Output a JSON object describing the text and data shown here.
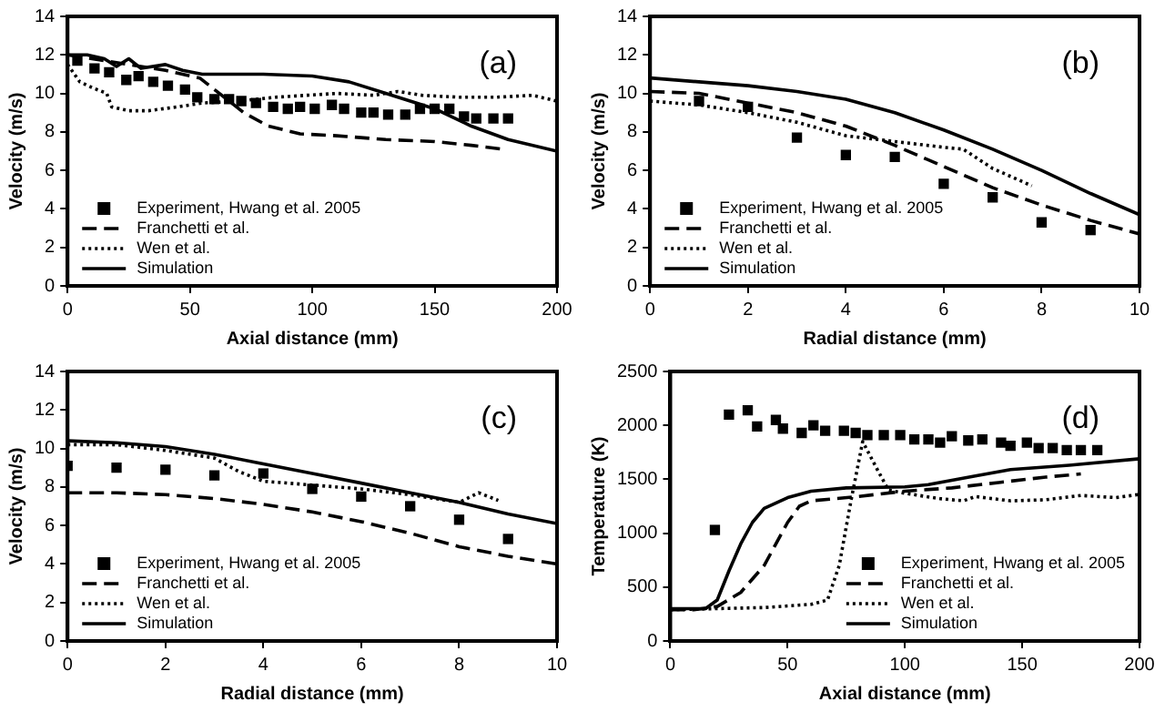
{
  "chart_data": [
    {
      "type": "line",
      "annotations": [
        "(a)"
      ],
      "xlabel": "Axial distance (mm)",
      "ylabel": "Velocity (m/s)",
      "xlim": [
        0,
        200
      ],
      "xticks": [
        0,
        50,
        100,
        150,
        200
      ],
      "ylim": [
        0,
        14
      ],
      "yticks": [
        0,
        2,
        4,
        6,
        8,
        10,
        12,
        14
      ],
      "legend": "bottom left",
      "series": [
        {
          "name": "Experiment, Hwang et al. 2005",
          "type": "scatter",
          "marker": "square",
          "color": "#000000",
          "x": [
            4,
            11,
            17,
            24,
            29,
            35,
            41,
            48,
            53,
            60,
            66,
            71,
            77,
            84,
            90,
            95,
            101,
            108,
            113,
            120,
            125,
            131,
            138,
            144,
            150,
            156,
            162,
            167,
            174,
            180
          ],
          "values": [
            11.7,
            11.3,
            11.1,
            10.7,
            10.9,
            10.6,
            10.4,
            10.2,
            9.8,
            9.7,
            9.7,
            9.6,
            9.5,
            9.3,
            9.2,
            9.3,
            9.2,
            9.4,
            9.2,
            9.0,
            9.0,
            8.9,
            8.9,
            9.2,
            9.2,
            9.2,
            8.8,
            8.7,
            8.7,
            8.7
          ]
        },
        {
          "name": "Franchetti et al.",
          "type": "line",
          "line_style": "dashed",
          "color": "#000000",
          "x": [
            0,
            10,
            25,
            40,
            54,
            63,
            72,
            82,
            95,
            110,
            130,
            150,
            165,
            178
          ],
          "values": [
            12.0,
            11.8,
            11.5,
            11.2,
            10.8,
            9.9,
            9.0,
            8.3,
            7.9,
            7.8,
            7.6,
            7.5,
            7.3,
            7.1
          ]
        },
        {
          "name": "Wen et al.",
          "type": "line",
          "line_style": "dotted",
          "color": "#000000",
          "x": [
            0,
            5,
            10,
            16,
            18,
            25,
            33,
            45,
            55,
            70,
            85,
            110,
            125,
            135,
            145,
            160,
            175,
            190,
            200
          ],
          "values": [
            11.5,
            10.6,
            10.3,
            10.0,
            9.3,
            9.1,
            9.1,
            9.3,
            9.5,
            9.6,
            9.8,
            10.0,
            9.9,
            10.1,
            9.9,
            9.8,
            9.8,
            9.9,
            9.6
          ]
        },
        {
          "name": "Simulation",
          "type": "line",
          "line_style": "solid",
          "color": "#000000",
          "x": [
            0,
            8,
            15,
            20,
            25,
            30,
            40,
            47,
            55,
            80,
            100,
            115,
            130,
            150,
            165,
            180,
            200
          ],
          "values": [
            12.0,
            12.0,
            11.8,
            11.4,
            11.8,
            11.3,
            11.5,
            11.2,
            11.0,
            11.0,
            10.9,
            10.6,
            10.0,
            9.2,
            8.3,
            7.6,
            7.0
          ]
        }
      ]
    },
    {
      "type": "line",
      "annotations": [
        "(b)"
      ],
      "xlabel": "Radial distance (mm)",
      "ylabel": "Velocity (m/s)",
      "xlim": [
        0,
        10
      ],
      "xticks": [
        0,
        2,
        4,
        6,
        8,
        10
      ],
      "ylim": [
        0,
        14
      ],
      "yticks": [
        0,
        2,
        4,
        6,
        8,
        10,
        12,
        14
      ],
      "legend": "bottom left",
      "series": [
        {
          "name": "Experiment, Hwang et al. 2005",
          "type": "scatter",
          "marker": "square",
          "color": "#000000",
          "x": [
            1,
            2,
            3,
            4,
            5,
            6,
            7,
            8,
            9
          ],
          "values": [
            9.6,
            9.3,
            7.7,
            6.8,
            6.7,
            5.3,
            4.6,
            3.3,
            2.9
          ]
        },
        {
          "name": "Franchetti et al.",
          "type": "line",
          "line_style": "dashed",
          "color": "#000000",
          "x": [
            0,
            1,
            2,
            3,
            4,
            5,
            6,
            7,
            8,
            9,
            10
          ],
          "values": [
            10.1,
            10.0,
            9.5,
            9.0,
            8.3,
            7.3,
            6.2,
            5.1,
            4.2,
            3.4,
            2.7
          ]
        },
        {
          "name": "Wen et al.",
          "type": "line",
          "line_style": "dotted",
          "color": "#000000",
          "x": [
            0,
            1,
            2,
            3,
            4,
            5,
            6,
            6.4,
            7,
            7.8
          ],
          "values": [
            9.6,
            9.4,
            9.0,
            8.5,
            7.8,
            7.5,
            7.2,
            7.1,
            6.1,
            5.2
          ]
        },
        {
          "name": "Simulation",
          "type": "line",
          "line_style": "solid",
          "color": "#000000",
          "x": [
            0,
            1,
            2,
            3,
            4,
            5,
            6,
            7,
            8,
            9,
            10
          ],
          "values": [
            10.8,
            10.6,
            10.4,
            10.1,
            9.7,
            9.0,
            8.1,
            7.1,
            6.0,
            4.8,
            3.7
          ]
        }
      ]
    },
    {
      "type": "line",
      "annotations": [
        "(c)"
      ],
      "xlabel": "Radial distance (mm)",
      "ylabel": "Velocity (m/s)",
      "xlim": [
        0,
        10
      ],
      "xticks": [
        0,
        2,
        4,
        6,
        8,
        10
      ],
      "ylim": [
        0,
        14
      ],
      "yticks": [
        0,
        2,
        4,
        6,
        8,
        10,
        12,
        14
      ],
      "legend": "bottom left",
      "series": [
        {
          "name": "Experiment, Hwang et al. 2005",
          "type": "scatter",
          "marker": "square",
          "color": "#000000",
          "x": [
            0,
            1,
            2,
            3,
            4,
            5,
            6,
            7,
            8,
            9
          ],
          "values": [
            9.1,
            9.0,
            8.9,
            8.6,
            8.7,
            7.9,
            7.5,
            7.0,
            6.3,
            5.3
          ]
        },
        {
          "name": "Franchetti et al.",
          "type": "line",
          "line_style": "dashed",
          "color": "#000000",
          "x": [
            0,
            1,
            2,
            3,
            4,
            5,
            6,
            7,
            8,
            9,
            10
          ],
          "values": [
            7.7,
            7.7,
            7.6,
            7.4,
            7.1,
            6.7,
            6.2,
            5.6,
            4.9,
            4.4,
            4.0
          ]
        },
        {
          "name": "Wen et al.",
          "type": "line",
          "line_style": "dotted",
          "color": "#000000",
          "x": [
            0,
            1,
            2,
            3,
            3.5,
            4,
            5,
            6,
            7,
            8,
            8.4,
            8.8
          ],
          "values": [
            10.2,
            10.2,
            9.9,
            9.5,
            8.8,
            8.3,
            8.1,
            7.9,
            7.6,
            7.2,
            7.7,
            7.3
          ]
        },
        {
          "name": "Simulation",
          "type": "line",
          "line_style": "solid",
          "color": "#000000",
          "x": [
            0,
            1,
            2,
            3,
            4,
            5,
            6,
            7,
            8,
            9,
            10
          ],
          "values": [
            10.4,
            10.3,
            10.1,
            9.7,
            9.2,
            8.7,
            8.2,
            7.7,
            7.2,
            6.6,
            6.1
          ]
        }
      ]
    },
    {
      "type": "line",
      "annotations": [
        "(d)"
      ],
      "xlabel": "Axial distance (mm)",
      "ylabel": "Temperature (K)",
      "xlim": [
        0,
        200
      ],
      "xticks": [
        0,
        50,
        100,
        150,
        200
      ],
      "ylim": [
        0,
        2500
      ],
      "yticks": [
        0,
        500,
        1000,
        1500,
        2000,
        2500
      ],
      "legend": "bottom right",
      "series": [
        {
          "name": "Experiment, Hwang et al. 2005",
          "type": "scatter",
          "marker": "square",
          "color": "#000000",
          "x": [
            19,
            25,
            33,
            37,
            45,
            48,
            56,
            61,
            66,
            74,
            79,
            84,
            91,
            98,
            104,
            110,
            115,
            120,
            127,
            133,
            141,
            145,
            152,
            157,
            163,
            169,
            175,
            182
          ],
          "values": [
            1030,
            2100,
            2140,
            1990,
            2050,
            1970,
            1930,
            2000,
            1950,
            1950,
            1930,
            1910,
            1910,
            1910,
            1870,
            1870,
            1840,
            1900,
            1860,
            1870,
            1840,
            1810,
            1840,
            1790,
            1790,
            1770,
            1770,
            1770
          ]
        },
        {
          "name": "Franchetti et al.",
          "type": "line",
          "line_style": "dashed",
          "color": "#000000",
          "x": [
            0,
            10,
            20,
            30,
            40,
            50,
            55,
            60,
            80,
            100,
            120,
            140,
            160,
            175
          ],
          "values": [
            290,
            290,
            320,
            450,
            700,
            1100,
            1250,
            1300,
            1340,
            1390,
            1420,
            1470,
            1520,
            1550
          ]
        },
        {
          "name": "Wen et al.",
          "type": "line",
          "line_style": "dotted",
          "color": "#000000",
          "x": [
            0,
            20,
            40,
            60,
            67,
            72,
            77,
            82,
            88,
            93,
            100,
            115,
            125,
            130,
            145,
            160,
            175,
            190,
            200
          ],
          "values": [
            290,
            300,
            310,
            340,
            380,
            700,
            1300,
            1850,
            1600,
            1400,
            1370,
            1320,
            1300,
            1340,
            1300,
            1310,
            1350,
            1330,
            1360
          ]
        },
        {
          "name": "Simulation",
          "type": "line",
          "line_style": "solid",
          "color": "#000000",
          "x": [
            0,
            15,
            20,
            25,
            30,
            35,
            40,
            50,
            60,
            75,
            100,
            110,
            130,
            145,
            170,
            200
          ],
          "values": [
            300,
            300,
            380,
            650,
            900,
            1100,
            1230,
            1330,
            1390,
            1420,
            1430,
            1450,
            1530,
            1590,
            1630,
            1690
          ]
        }
      ]
    }
  ]
}
